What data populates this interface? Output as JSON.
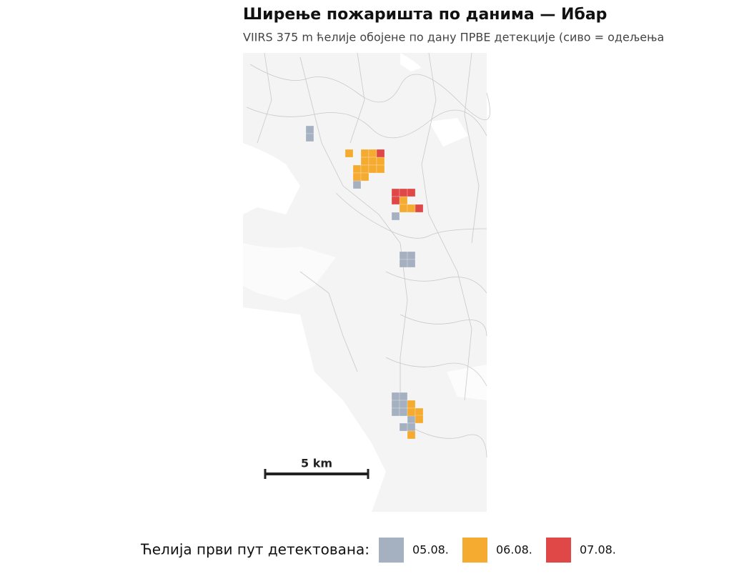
{
  "title": "Ширење пожаришта по данима — Ибар",
  "subtitle": "VIIRS 375 m ћелије обојене по дану ПРВЕ детекције (сиво = одељења",
  "scale_bar": {
    "label": "5 km"
  },
  "legend": {
    "title": "Ћелија први пут детектована:",
    "items": [
      {
        "label": "05.08.",
        "color": "#a5b0c1"
      },
      {
        "label": "06.08.",
        "color": "#f5ab30"
      },
      {
        "label": "07.08.",
        "color": "#e04848"
      }
    ]
  }
}
